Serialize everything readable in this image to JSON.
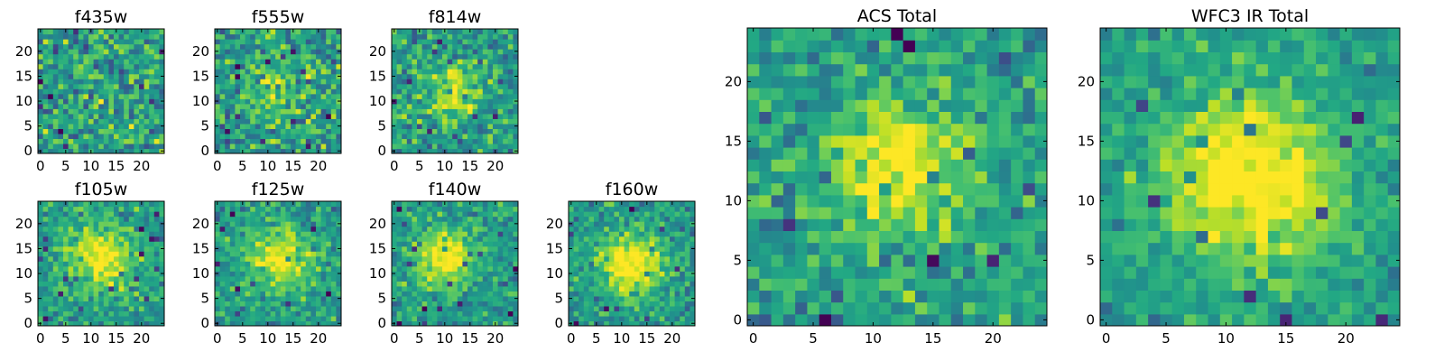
{
  "figure": {
    "colormap": "viridis",
    "panel_group": "multi-band image cutouts"
  },
  "chart_data": [
    {
      "type": "heatmap",
      "title": "f435w",
      "seed": 11,
      "amp": 0.05,
      "sigma": 4.0,
      "noise": 0.3,
      "cx": 12,
      "cy": 12,
      "xlim": [
        0,
        25
      ],
      "ylim": [
        0,
        25
      ],
      "xticks": [
        0,
        5,
        10,
        15,
        20
      ],
      "yticks": [
        0,
        5,
        10,
        15,
        20
      ]
    },
    {
      "type": "heatmap",
      "title": "f555w",
      "seed": 23,
      "amp": 0.25,
      "sigma": 4.0,
      "noise": 0.28,
      "cx": 12,
      "cy": 12,
      "xlim": [
        0,
        25
      ],
      "ylim": [
        0,
        25
      ],
      "xticks": [
        0,
        5,
        10,
        15,
        20
      ],
      "yticks": [
        0,
        5,
        10,
        15,
        20
      ]
    },
    {
      "type": "heatmap",
      "title": "f814w",
      "seed": 37,
      "amp": 0.35,
      "sigma": 4.0,
      "noise": 0.25,
      "cx": 12,
      "cy": 12,
      "xlim": [
        0,
        25
      ],
      "ylim": [
        0,
        25
      ],
      "xticks": [
        0,
        5,
        10,
        15,
        20
      ],
      "yticks": [
        0,
        5,
        10,
        15,
        20
      ]
    },
    {
      "type": "heatmap",
      "title": "f105w",
      "seed": 41,
      "amp": 0.45,
      "sigma": 4.5,
      "noise": 0.2,
      "cx": 12,
      "cy": 13,
      "xlim": [
        0,
        25
      ],
      "ylim": [
        0,
        25
      ],
      "xticks": [
        0,
        5,
        10,
        15,
        20
      ],
      "yticks": [
        0,
        5,
        10,
        15,
        20
      ]
    },
    {
      "type": "heatmap",
      "title": "f125w",
      "seed": 53,
      "amp": 0.4,
      "sigma": 4.5,
      "noise": 0.2,
      "cx": 12,
      "cy": 13,
      "xlim": [
        0,
        25
      ],
      "ylim": [
        0,
        25
      ],
      "xticks": [
        0,
        5,
        10,
        15,
        20
      ],
      "yticks": [
        0,
        5,
        10,
        15,
        20
      ]
    },
    {
      "type": "heatmap",
      "title": "f140w",
      "seed": 67,
      "amp": 0.5,
      "sigma": 4.0,
      "noise": 0.2,
      "cx": 10,
      "cy": 13,
      "xlim": [
        0,
        25
      ],
      "ylim": [
        0,
        25
      ],
      "xticks": [
        0,
        5,
        10,
        15,
        20
      ],
      "yticks": [
        0,
        5,
        10,
        15,
        20
      ]
    },
    {
      "type": "heatmap",
      "title": "f160w",
      "seed": 79,
      "amp": 0.55,
      "sigma": 4.0,
      "noise": 0.2,
      "cx": 12,
      "cy": 12,
      "xlim": [
        0,
        25
      ],
      "ylim": [
        0,
        25
      ],
      "xticks": [
        0,
        5,
        10,
        15,
        20
      ],
      "yticks": [
        0,
        5,
        10,
        15,
        20
      ]
    },
    {
      "type": "heatmap",
      "title": "ACS Total",
      "seed": 97,
      "amp": 0.45,
      "sigma": 4.0,
      "noise": 0.22,
      "cx": 12,
      "cy": 13,
      "xlim": [
        0,
        25
      ],
      "ylim": [
        0,
        25
      ],
      "xticks": [
        0,
        5,
        10,
        15,
        20
      ],
      "yticks": [
        0,
        5,
        10,
        15,
        20
      ]
    },
    {
      "type": "heatmap",
      "title": "WFC3 IR Total",
      "seed": 113,
      "amp": 0.55,
      "sigma": 5.0,
      "noise": 0.16,
      "cx": 12,
      "cy": 12,
      "xlim": [
        0,
        25
      ],
      "ylim": [
        0,
        25
      ],
      "xticks": [
        0,
        5,
        10,
        15,
        20
      ],
      "yticks": [
        0,
        5,
        10,
        15,
        20
      ]
    }
  ]
}
